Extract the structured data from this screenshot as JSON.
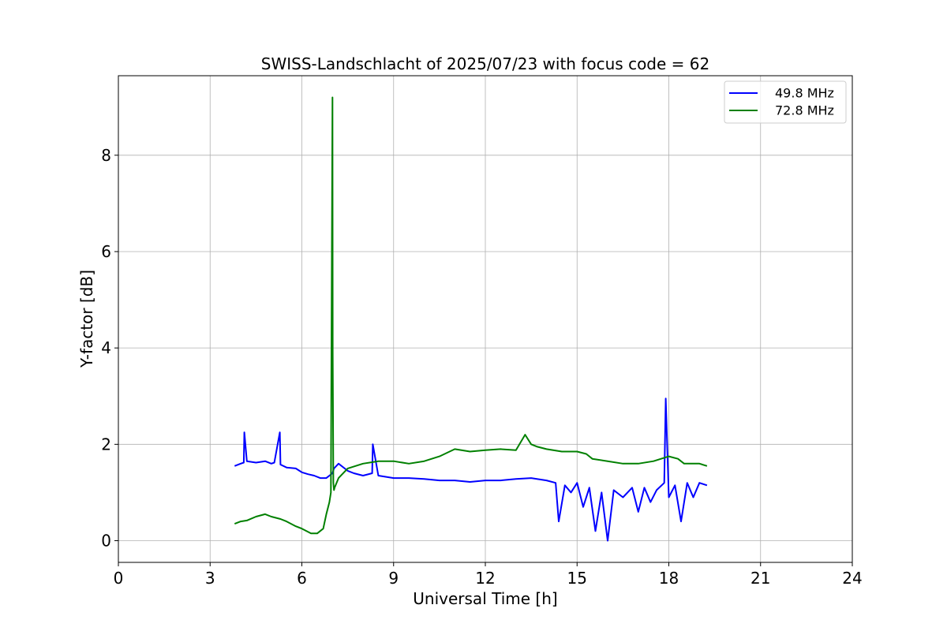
{
  "chart_data": {
    "type": "line",
    "title": "SWISS-Landschlacht of 2025/07/23 with focus code = 62",
    "xlabel": "Universal Time [h]",
    "ylabel": "Y-factor [dB]",
    "xlim": [
      0,
      24
    ],
    "ylim": [
      -0.45,
      9.65
    ],
    "xticks": [
      0,
      3,
      6,
      9,
      12,
      15,
      18,
      21,
      24
    ],
    "yticks": [
      0,
      2,
      4,
      6,
      8
    ],
    "grid": true,
    "legend_position": "top-right",
    "series": [
      {
        "name": "49.8 MHz",
        "color": "#0000ff",
        "x": [
          3.8,
          4.0,
          4.1,
          4.12,
          4.2,
          4.5,
          4.8,
          5.0,
          5.1,
          5.28,
          5.3,
          5.5,
          5.8,
          6.0,
          6.2,
          6.4,
          6.6,
          6.8,
          7.0,
          7.05,
          7.2,
          7.5,
          7.7,
          8.0,
          8.3,
          8.32,
          8.5,
          9.0,
          9.5,
          10.0,
          10.5,
          11.0,
          11.5,
          12.0,
          12.5,
          13.0,
          13.5,
          14.0,
          14.3,
          14.4,
          14.6,
          14.8,
          15.0,
          15.2,
          15.4,
          15.6,
          15.8,
          16.0,
          16.2,
          16.5,
          16.8,
          17.0,
          17.2,
          17.4,
          17.6,
          17.85,
          17.9,
          18.0,
          18.2,
          18.4,
          18.6,
          18.8,
          19.0,
          19.25
        ],
        "y": [
          1.55,
          1.6,
          1.62,
          2.25,
          1.65,
          1.62,
          1.65,
          1.6,
          1.62,
          2.25,
          1.58,
          1.52,
          1.5,
          1.42,
          1.38,
          1.35,
          1.3,
          1.3,
          1.4,
          1.5,
          1.6,
          1.45,
          1.4,
          1.35,
          1.4,
          2.0,
          1.35,
          1.3,
          1.3,
          1.28,
          1.25,
          1.25,
          1.22,
          1.25,
          1.25,
          1.28,
          1.3,
          1.25,
          1.2,
          0.4,
          1.15,
          1.0,
          1.2,
          0.7,
          1.1,
          0.2,
          1.0,
          0.0,
          1.05,
          0.9,
          1.1,
          0.6,
          1.1,
          0.8,
          1.05,
          1.2,
          2.95,
          0.9,
          1.15,
          0.4,
          1.2,
          0.9,
          1.2,
          1.15
        ]
      },
      {
        "name": "72.8 MHz",
        "color": "#008000",
        "x": [
          3.8,
          4.0,
          4.2,
          4.5,
          4.8,
          5.0,
          5.3,
          5.5,
          5.8,
          6.0,
          6.3,
          6.5,
          6.7,
          6.8,
          6.9,
          6.95,
          7.0,
          7.01,
          7.03,
          7.05,
          7.07,
          7.2,
          7.5,
          8.0,
          8.5,
          9.0,
          9.5,
          10.0,
          10.5,
          11.0,
          11.5,
          12.0,
          12.5,
          13.0,
          13.3,
          13.5,
          13.7,
          14.0,
          14.5,
          15.0,
          15.3,
          15.5,
          16.0,
          16.5,
          17.0,
          17.5,
          18.0,
          18.3,
          18.5,
          19.0,
          19.25
        ],
        "y": [
          0.35,
          0.4,
          0.42,
          0.5,
          0.55,
          0.5,
          0.45,
          0.4,
          0.3,
          0.25,
          0.15,
          0.15,
          0.25,
          0.55,
          0.8,
          1.0,
          9.2,
          3.9,
          1.2,
          1.05,
          1.1,
          1.3,
          1.5,
          1.6,
          1.65,
          1.65,
          1.6,
          1.65,
          1.75,
          1.9,
          1.85,
          1.88,
          1.9,
          1.88,
          2.2,
          2.0,
          1.95,
          1.9,
          1.85,
          1.85,
          1.8,
          1.7,
          1.65,
          1.6,
          1.6,
          1.65,
          1.75,
          1.7,
          1.6,
          1.6,
          1.55
        ]
      }
    ]
  }
}
